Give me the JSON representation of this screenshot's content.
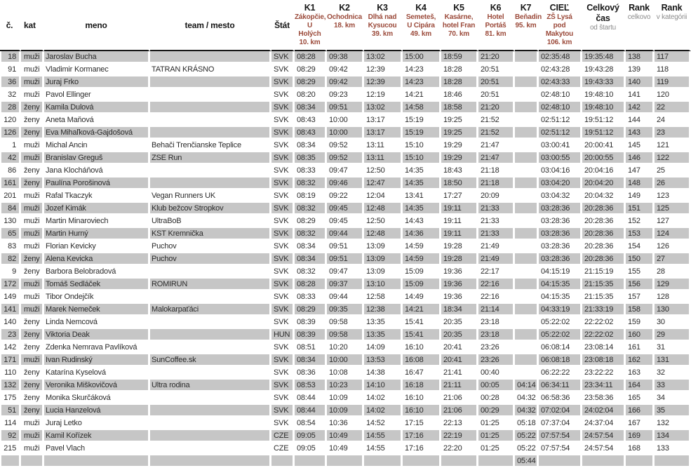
{
  "colors": {
    "checkpoint_location_text": "#9b4a3a",
    "header_text": "#161616",
    "sub_header_text": "#8c8c8c",
    "row_stripe": "#c6c6c6",
    "cell_text": "#2b2b2b"
  },
  "header": {
    "col_no": "č.",
    "col_kat": "kat",
    "col_meno": "meno",
    "col_team": "team / mesto",
    "col_stat": "Štát",
    "checkpoints": [
      {
        "code": "K1",
        "location": "Zákopčie, U\nHolých",
        "km": "10. km"
      },
      {
        "code": "K2",
        "location": "Ochodnica",
        "km": "18. km"
      },
      {
        "code": "K3",
        "location": "Dlhá nad\nKysucou",
        "km": "39. km"
      },
      {
        "code": "K4",
        "location": "Semeteš,\nU Cipára",
        "km": "49. km"
      },
      {
        "code": "K5",
        "location": "Kasárne,\nhotel Fran",
        "km": "70. km"
      },
      {
        "code": "K6",
        "location": "Hotel\nPortáš",
        "km": "81. km"
      },
      {
        "code": "K7",
        "location": "Beňadin",
        "km": "95. km"
      },
      {
        "code": "CIEĽ",
        "location": "ZŠ Lysá\npod\nMakytou",
        "km": "106. km"
      }
    ],
    "total_time": {
      "title": "Celkový\nčas",
      "sub": "od štartu"
    },
    "rank_overall": {
      "title": "Rank",
      "sub": "celkovo"
    },
    "rank_category": {
      "title": "Rank",
      "sub": "v kategórii"
    }
  },
  "column_keys": [
    "no",
    "kat",
    "meno",
    "team",
    "stat",
    "k1",
    "k2",
    "k3",
    "k4",
    "k5",
    "k6",
    "k7",
    "ciel",
    "total",
    "rank",
    "rank_kat"
  ],
  "rows": [
    [
      "18",
      "muži",
      "Jaroslav Bucha",
      "",
      "SVK",
      "08:28",
      "09:38",
      "13:02",
      "15:00",
      "18:59",
      "21:20",
      "",
      "02:35:48",
      "19:35:48",
      "138",
      "117"
    ],
    [
      "91",
      "muži",
      "Vladimir Kormanec",
      "TATRAN KRÁSNO",
      "SVK",
      "08:29",
      "09:42",
      "12:39",
      "14:23",
      "18:28",
      "20:51",
      "",
      "02:43:28",
      "19:43:28",
      "139",
      "118"
    ],
    [
      "36",
      "muži",
      "Juraj Frko",
      "",
      "SVK",
      "08:29",
      "09:42",
      "12:39",
      "14:23",
      "18:28",
      "20:51",
      "",
      "02:43:33",
      "19:43:33",
      "140",
      "119"
    ],
    [
      "32",
      "muži",
      "Pavol Ellinger",
      "",
      "SVK",
      "08:20",
      "09:23",
      "12:19",
      "14:21",
      "18:46",
      "20:51",
      "",
      "02:48:10",
      "19:48:10",
      "141",
      "120"
    ],
    [
      "28",
      "ženy",
      "Kamila Dulová",
      "",
      "SVK",
      "08:34",
      "09:51",
      "13:02",
      "14:58",
      "18:58",
      "21:20",
      "",
      "02:48:10",
      "19:48:10",
      "142",
      "22"
    ],
    [
      "120",
      "ženy",
      "Aneta Maňová",
      "",
      "SVK",
      "08:43",
      "10:00",
      "13:17",
      "15:19",
      "19:25",
      "21:52",
      "",
      "02:51:12",
      "19:51:12",
      "144",
      "24"
    ],
    [
      "126",
      "ženy",
      "Eva Mihaľková-Gajdošová",
      "",
      "SVK",
      "08:43",
      "10:00",
      "13:17",
      "15:19",
      "19:25",
      "21:52",
      "",
      "02:51:12",
      "19:51:12",
      "143",
      "23"
    ],
    [
      "1",
      "muži",
      "Michal Ancin",
      "Behači Trenčianske Teplice",
      "SVK",
      "08:34",
      "09:52",
      "13:11",
      "15:10",
      "19:29",
      "21:47",
      "",
      "03:00:41",
      "20:00:41",
      "145",
      "121"
    ],
    [
      "42",
      "muži",
      "Branislav Greguš",
      "ZSE Run",
      "SVK",
      "08:35",
      "09:52",
      "13:11",
      "15:10",
      "19:29",
      "21:47",
      "",
      "03:00:55",
      "20:00:55",
      "146",
      "122"
    ],
    [
      "86",
      "ženy",
      "Jana Klocháňová",
      "",
      "SVK",
      "08:33",
      "09:47",
      "12:50",
      "14:35",
      "18:43",
      "21:18",
      "",
      "03:04:16",
      "20:04:16",
      "147",
      "25"
    ],
    [
      "161",
      "ženy",
      "Paulína Porošinová",
      "",
      "SVK",
      "08:32",
      "09:46",
      "12:47",
      "14:35",
      "18:50",
      "21:18",
      "",
      "03:04:20",
      "20:04:20",
      "148",
      "26"
    ],
    [
      "201",
      "muži",
      "Rafal Tkaczyk",
      "Vegan Runners UK",
      "SVK",
      "08:19",
      "09:22",
      "12:04",
      "13:41",
      "17:27",
      "20:09",
      "",
      "03:04:32",
      "20:04:32",
      "149",
      "123"
    ],
    [
      "84",
      "muži",
      "Jozef Kimák",
      "Klub bežcov Stropkov",
      "SVK",
      "08:32",
      "09:45",
      "12:48",
      "14:35",
      "19:11",
      "21:33",
      "",
      "03:28:36",
      "20:28:36",
      "151",
      "125"
    ],
    [
      "130",
      "muži",
      "Martin Minaroviech",
      "UltraBoB",
      "SVK",
      "08:29",
      "09:45",
      "12:50",
      "14:43",
      "19:11",
      "21:33",
      "",
      "03:28:36",
      "20:28:36",
      "152",
      "127"
    ],
    [
      "65",
      "muži",
      "Martin Hurný",
      "KST Kremnička",
      "SVK",
      "08:32",
      "09:44",
      "12:48",
      "14:36",
      "19:11",
      "21:33",
      "",
      "03:28:36",
      "20:28:36",
      "153",
      "124"
    ],
    [
      "83",
      "muži",
      "Florian Kevicky",
      "Puchov",
      "SVK",
      "08:34",
      "09:51",
      "13:09",
      "14:59",
      "19:28",
      "21:49",
      "",
      "03:28:36",
      "20:28:36",
      "154",
      "126"
    ],
    [
      "82",
      "ženy",
      "Alena Kevicka",
      "Puchov",
      "SVK",
      "08:34",
      "09:51",
      "13:09",
      "14:59",
      "19:28",
      "21:49",
      "",
      "03:28:36",
      "20:28:36",
      "150",
      "27"
    ],
    [
      "9",
      "ženy",
      "Barbora Belobradová",
      "",
      "SVK",
      "08:32",
      "09:47",
      "13:09",
      "15:09",
      "19:36",
      "22:17",
      "",
      "04:15:19",
      "21:15:19",
      "155",
      "28"
    ],
    [
      "172",
      "muži",
      "Tomáš Sedláček",
      "ROMIRUN",
      "SVK",
      "08:28",
      "09:37",
      "13:10",
      "15:09",
      "19:36",
      "22:16",
      "",
      "04:15:35",
      "21:15:35",
      "156",
      "129"
    ],
    [
      "149",
      "muži",
      "Tibor Ondejčík",
      "",
      "SVK",
      "08:33",
      "09:44",
      "12:58",
      "14:49",
      "19:36",
      "22:16",
      "",
      "04:15:35",
      "21:15:35",
      "157",
      "128"
    ],
    [
      "141",
      "muži",
      "Marek Nemeček",
      "Malokarpaťáci",
      "SVK",
      "08:29",
      "09:35",
      "12:38",
      "14:21",
      "18:34",
      "21:14",
      "",
      "04:33:19",
      "21:33:19",
      "158",
      "130"
    ],
    [
      "140",
      "ženy",
      "Linda Nemcová",
      "",
      "SVK",
      "08:39",
      "09:58",
      "13:35",
      "15:41",
      "20:35",
      "23:18",
      "",
      "05:22:02",
      "22:22:02",
      "159",
      "30"
    ],
    [
      "23",
      "ženy",
      "Viktoria Deak",
      "",
      "HUN",
      "08:39",
      "09:58",
      "13:35",
      "15:41",
      "20:35",
      "23:18",
      "",
      "05:22:02",
      "22:22:02",
      "160",
      "29"
    ],
    [
      "142",
      "ženy",
      "Zdenka Nemrava Pavlíková",
      "",
      "SVK",
      "08:51",
      "10:20",
      "14:09",
      "16:10",
      "20:41",
      "23:26",
      "",
      "06:08:14",
      "23:08:14",
      "161",
      "31"
    ],
    [
      "171",
      "muži",
      "Ivan Rudinský",
      "SunCoffee.sk",
      "SVK",
      "08:34",
      "10:00",
      "13:53",
      "16:08",
      "20:41",
      "23:26",
      "",
      "06:08:18",
      "23:08:18",
      "162",
      "131"
    ],
    [
      "110",
      "ženy",
      "Katarína Kyselová",
      "",
      "SVK",
      "08:36",
      "10:08",
      "14:38",
      "16:47",
      "21:41",
      "00:40",
      "",
      "06:22:22",
      "23:22:22",
      "163",
      "32"
    ],
    [
      "132",
      "ženy",
      "Veronika Miškovičová",
      "Ultra rodina",
      "SVK",
      "08:53",
      "10:23",
      "14:10",
      "16:18",
      "21:11",
      "00:05",
      "04:14",
      "06:34:11",
      "23:34:11",
      "164",
      "33"
    ],
    [
      "175",
      "ženy",
      "Monika Skurčáková",
      "",
      "SVK",
      "08:44",
      "10:09",
      "14:02",
      "16:10",
      "21:06",
      "00:28",
      "04:32",
      "06:58:36",
      "23:58:36",
      "165",
      "34"
    ],
    [
      "51",
      "ženy",
      "Lucia Hanzelová",
      "",
      "SVK",
      "08:44",
      "10:09",
      "14:02",
      "16:10",
      "21:06",
      "00:29",
      "04:32",
      "07:02:04",
      "24:02:04",
      "166",
      "35"
    ],
    [
      "114",
      "muži",
      "Juraj Letko",
      "",
      "SVK",
      "08:54",
      "10:36",
      "14:52",
      "17:15",
      "22:13",
      "01:25",
      "05:18",
      "07:37:04",
      "24:37:04",
      "167",
      "132"
    ],
    [
      "92",
      "muži",
      "Kamil Kořízek",
      "",
      "CZE",
      "09:05",
      "10:49",
      "14:55",
      "17:16",
      "22:19",
      "01:25",
      "05:22",
      "07:57:54",
      "24:57:54",
      "169",
      "134"
    ],
    [
      "215",
      "muži",
      "Pavel Vlach",
      "",
      "CZE",
      "09:05",
      "10:49",
      "14:55",
      "17:16",
      "22:20",
      "01:25",
      "05:22",
      "07:57:54",
      "24:57:54",
      "168",
      "133"
    ],
    [
      "",
      "",
      "",
      "",
      "",
      "",
      "",
      "",
      "",
      "",
      "",
      "05:44",
      "",
      "",
      "",
      ""
    ]
  ]
}
